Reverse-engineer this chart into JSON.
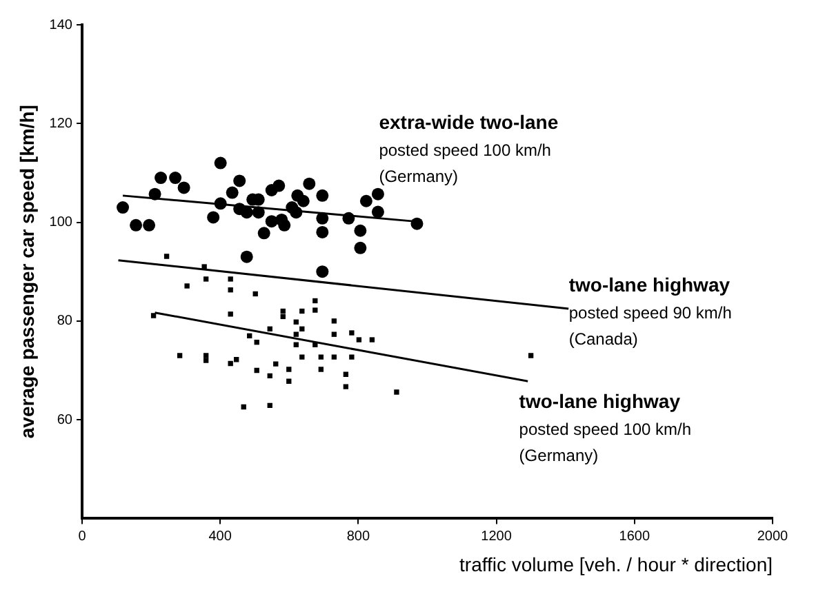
{
  "chart_data": {
    "type": "scatter",
    "xlabel": "traffic volume [veh. / hour * direction]",
    "ylabel": "average passenger car speed [km/h]",
    "xlim": [
      0,
      2000
    ],
    "xticks": [
      0,
      400,
      800,
      1200,
      1600,
      2000
    ],
    "ylim": [
      40,
      140
    ],
    "yticks": [
      60,
      80,
      100,
      120,
      140
    ],
    "grid": false,
    "legend": false,
    "series": [
      {
        "color": "#000000",
        "marker": "circle",
        "x": [
          118,
          156,
          194,
          211,
          228,
          270,
          295,
          401,
          380,
          401,
          435,
          456,
          456,
          477,
          477,
          494,
          511,
          511,
          527,
          549,
          549,
          570,
          578,
          586,
          608,
          620,
          624,
          641,
          658,
          696,
          696,
          696,
          696,
          772,
          806,
          806,
          823,
          857,
          857,
          970
        ],
        "values": [
          103,
          99.4,
          99.4,
          105.7,
          109,
          109,
          107,
          112,
          101,
          103.8,
          106,
          108.4,
          102.7,
          102,
          93,
          104.6,
          104.6,
          102,
          97.8,
          100.2,
          106.5,
          107.4,
          100.5,
          99.4,
          103,
          102,
          105.4,
          104.3,
          107.8,
          105.4,
          100.8,
          98,
          90,
          100.8,
          98.3,
          94.8,
          104.3,
          105.7,
          102.1,
          99.7
        ]
      },
      {
        "color": "#000000",
        "marker": "square",
        "x": [
          207,
          430,
          283,
          359,
          359,
          430,
          447,
          468,
          485,
          506,
          506,
          544,
          544,
          544,
          561,
          582,
          582,
          599,
          599,
          620,
          620,
          620,
          637,
          637,
          637,
          675,
          675,
          675,
          692,
          692,
          730,
          730,
          730,
          764,
          764,
          781,
          781,
          802,
          840,
          911,
          304,
          359,
          430,
          430,
          502,
          245,
          354,
          1300
        ],
        "values": [
          81.1,
          81.4,
          73,
          73,
          72,
          71.4,
          72.2,
          62.6,
          77,
          75.7,
          70,
          78.4,
          68.9,
          62.9,
          71.3,
          82,
          80.9,
          70.2,
          67.8,
          79.8,
          77.3,
          75.2,
          82,
          78.4,
          72.7,
          84.1,
          82.2,
          75.2,
          72.7,
          70.2,
          80,
          77.3,
          72.7,
          69.2,
          66.7,
          77.6,
          72.7,
          76.2,
          76.2,
          65.6,
          87.1,
          88.5,
          88.5,
          86.3,
          85.5,
          93.1,
          91,
          73
        ]
      },
      {
        "type": "line",
        "color": "#000000",
        "marker": "none",
        "x": [
          118,
          960
        ],
        "values": [
          105.4,
          100.2
        ]
      },
      {
        "type": "line",
        "color": "#000000",
        "marker": "none",
        "x": [
          105,
          1409
        ],
        "values": [
          92.3,
          82.5
        ]
      },
      {
        "type": "line",
        "color": "#000000",
        "marker": "none",
        "x": [
          211,
          1291
        ],
        "values": [
          81.7,
          67.8
        ]
      }
    ],
    "annotations": [
      "extra-wide two-lane\nposted speed 100 km/h\n(Germany)",
      "two-lane highway\nposted speed 90 km/h\n(Canada)",
      "two-lane highway\nposted speed 100 km/h\n(Germany)"
    ]
  }
}
